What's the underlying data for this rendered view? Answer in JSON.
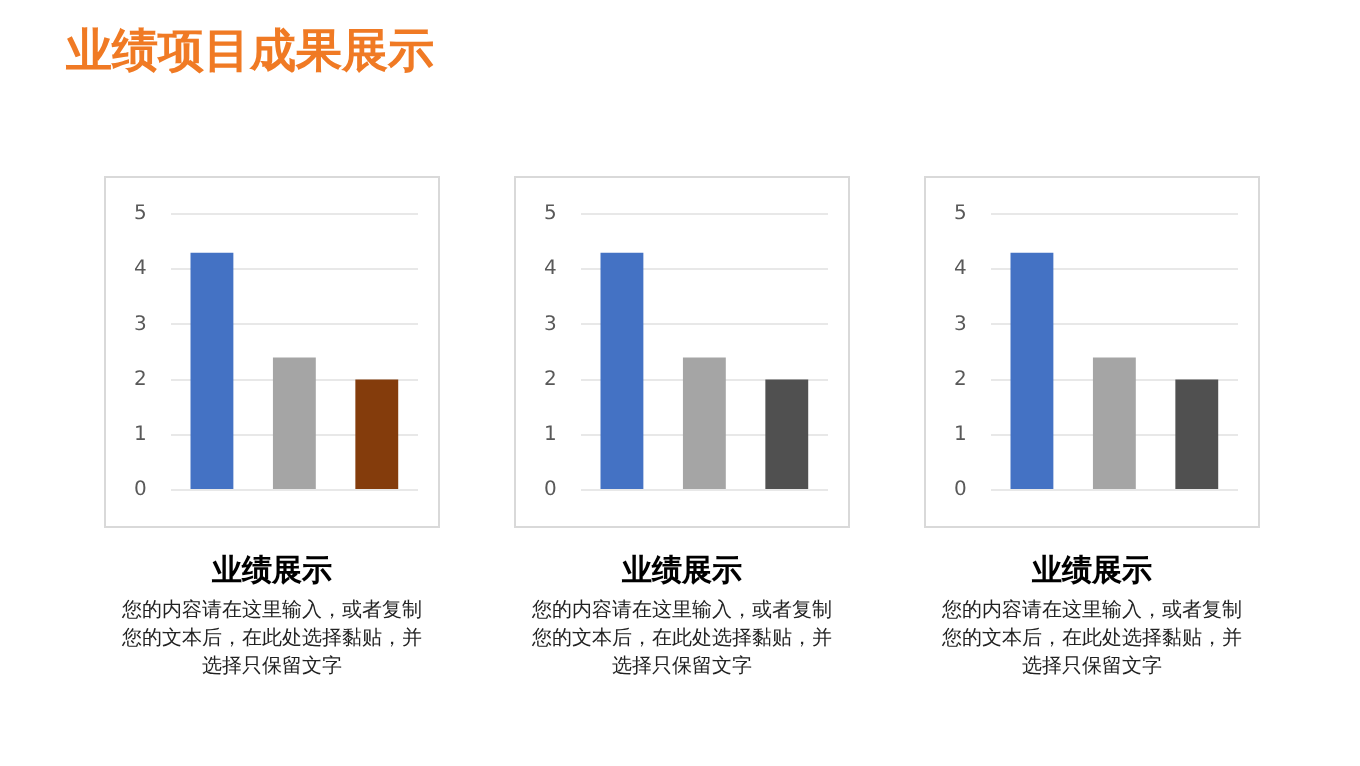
{
  "chart_data": [
    {
      "type": "other",
      "title": "业绩项目成果展示"
    },
    {
      "type": "bar",
      "title": "业绩展示",
      "annotations": [
        "您的内容请在这里输入，或者复制您的文本后，在此处选择黏贴，并选择只保留文字"
      ],
      "categories": [
        null,
        null,
        null
      ],
      "values": [
        4.3,
        2.4,
        2.0
      ],
      "colors": [
        "#4472c4",
        "#a5a5a5",
        "#843c0c"
      ],
      "ylim": [
        0,
        5
      ],
      "yticks": [
        0,
        1,
        2,
        3,
        4,
        5
      ],
      "grid": "y"
    },
    {
      "type": "bar",
      "title": "业绩展示",
      "annotations": [
        "您的内容请在这里输入，或者复制您的文本后，在此处选择黏贴，并选择只保留文字"
      ],
      "categories": [
        null,
        null,
        null
      ],
      "values": [
        4.3,
        2.4,
        2.0
      ],
      "colors": [
        "#4472c4",
        "#a5a5a5",
        "#505050"
      ],
      "ylim": [
        0,
        5
      ],
      "yticks": [
        0,
        1,
        2,
        3,
        4,
        5
      ],
      "grid": "y"
    },
    {
      "type": "bar",
      "title": "业绩展示",
      "annotations": [
        "您的内容请在这里输入，或者复制您的文本后，在此处选择黏贴，并选择只保留文字"
      ],
      "categories": [
        null,
        null,
        null
      ],
      "values": [
        4.3,
        2.4,
        2.0
      ],
      "colors": [
        "#4472c4",
        "#a5a5a5",
        "#505050"
      ],
      "ylim": [
        0,
        5
      ],
      "yticks": [
        0,
        1,
        2,
        3,
        4,
        5
      ],
      "grid": "y"
    }
  ]
}
